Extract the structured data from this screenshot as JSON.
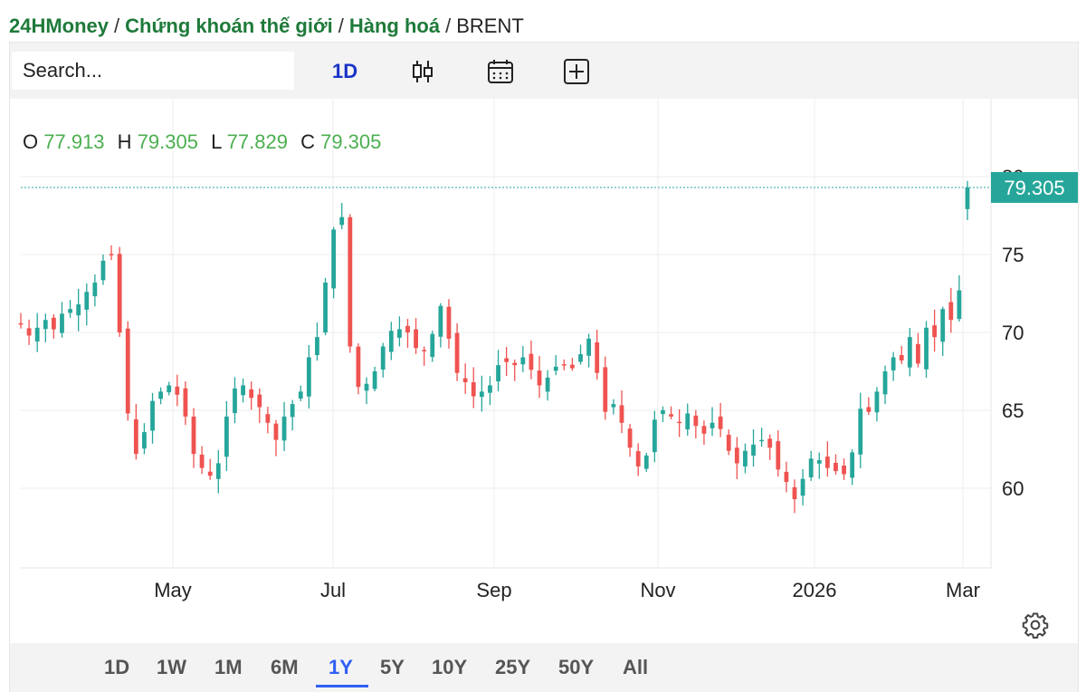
{
  "breadcrumb": {
    "items": [
      "24HMoney",
      "Chứng khoán thế giới",
      "Hàng hoá"
    ],
    "current": "BRENT",
    "separator": "/"
  },
  "toolbar": {
    "search_placeholder": "Search...",
    "interval": "1D",
    "icons": [
      "candlestick-icon",
      "calendar-icon",
      "add-indicator-icon"
    ]
  },
  "ohlc": {
    "o_label": "O",
    "o": "77.913",
    "h_label": "H",
    "h": "79.305",
    "l_label": "L",
    "l": "77.829",
    "c_label": "C",
    "c": "79.305"
  },
  "colors": {
    "up": "#26a69a",
    "down": "#ef5350",
    "accent": "#2f5ff5",
    "ohlc_value": "#4caf50",
    "brand": "#1f7a3a"
  },
  "chart_data": {
    "type": "candlestick",
    "symbol": "BRENT",
    "title": "",
    "xlabel": "",
    "ylabel": "",
    "ylim": [
      55,
      81
    ],
    "yticks": [
      60,
      65,
      70,
      75
    ],
    "x_ticks": [
      "May",
      "Jul",
      "Sep",
      "Nov",
      "2026",
      "Mar"
    ],
    "grid": true,
    "last_price": 79.305,
    "last_price_label": "79.305",
    "axis_partial_label": "80",
    "closes": [
      70.5,
      69.8,
      70.3,
      70.8,
      70.2,
      71.2,
      71.5,
      71.8,
      72.6,
      73.2,
      74.6,
      75.0,
      70.0,
      64.8,
      62.2,
      63.6,
      65.6,
      66.2,
      66.6,
      66.0,
      64.6,
      62.2,
      61.3,
      60.8,
      61.6,
      64.6,
      66.4,
      66.6,
      65.8,
      65.2,
      64.2,
      63.1,
      64.6,
      65.4,
      66.2,
      68.4,
      69.7,
      73.2,
      76.6,
      77.4,
      69.1,
      66.5,
      66.7,
      67.5,
      69.1,
      70.1,
      70.2,
      70.0,
      69.0,
      68.8,
      69.9,
      71.7,
      69.6,
      67.4,
      66.8,
      65.9,
      66.2,
      66.6,
      67.9,
      68.1,
      67.9,
      68.4,
      67.6,
      66.6,
      67.1,
      67.8,
      67.9,
      67.7,
      68.6,
      69.6,
      67.4,
      64.9,
      65.4,
      64.2,
      62.6,
      61.4,
      62.1,
      64.4,
      65.0,
      64.6,
      64.2,
      64.8,
      64.0,
      63.5,
      64.2,
      63.8,
      62.4,
      61.6,
      62.4,
      62.8,
      63.1,
      62.6,
      61.2,
      60.4,
      59.3,
      60.6,
      61.9,
      61.8,
      61.3,
      61.1,
      60.9,
      62.3,
      65.1,
      64.9,
      66.2,
      67.5,
      68.4,
      68.2,
      69.7,
      68.0,
      70.3,
      69.7,
      71.5,
      70.8,
      72.7,
      79.3
    ]
  },
  "range_bar": {
    "buttons": [
      "1D",
      "1W",
      "1M",
      "6M",
      "1Y",
      "5Y",
      "10Y",
      "25Y",
      "50Y",
      "All"
    ],
    "active": "1Y"
  }
}
